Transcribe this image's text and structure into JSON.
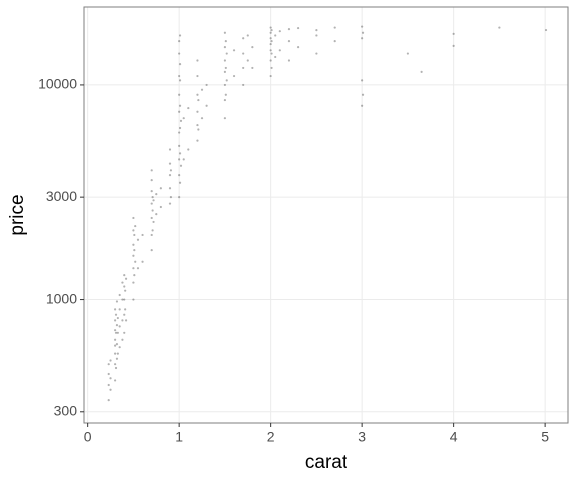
{
  "chart_data": {
    "type": "scatter",
    "x_label": "carat",
    "y_label": "price",
    "color": "#000000",
    "alpha": 0.3,
    "ylog": true,
    "grid": true,
    "xlim": [
      -0.04,
      5.25
    ],
    "ylim": [
      266,
      23070
    ],
    "xticks": [
      0,
      1,
      2,
      3,
      4,
      5
    ],
    "yticks": [
      300,
      1000,
      3000,
      10000
    ],
    "x": [
      0.23,
      0.23,
      0.23,
      0.23,
      0.25,
      0.25,
      0.25,
      0.3,
      0.3,
      0.3,
      0.3,
      0.3,
      0.3,
      0.3,
      0.3,
      0.31,
      0.31,
      0.31,
      0.32,
      0.32,
      0.32,
      0.32,
      0.33,
      0.33,
      0.33,
      0.35,
      0.35,
      0.35,
      0.35,
      0.38,
      0.38,
      0.38,
      0.38,
      0.4,
      0.4,
      0.4,
      0.4,
      0.4,
      0.41,
      0.41,
      0.42,
      0.42,
      0.5,
      0.5,
      0.5,
      0.5,
      0.5,
      0.5,
      0.5,
      0.51,
      0.51,
      0.51,
      0.52,
      0.52,
      0.55,
      0.55,
      0.6,
      0.6,
      0.7,
      0.7,
      0.7,
      0.7,
      0.7,
      0.7,
      0.7,
      0.71,
      0.71,
      0.71,
      0.72,
      0.72,
      0.75,
      0.75,
      0.8,
      0.8,
      0.9,
      0.9,
      0.9,
      0.9,
      0.9,
      0.91,
      0.91,
      1.0,
      1.0,
      1.0,
      1.0,
      1.0,
      1.0,
      1.0,
      1.0,
      1.0,
      1.0,
      1.01,
      1.01,
      1.01,
      1.01,
      1.01,
      1.01,
      1.01,
      1.02,
      1.02,
      1.05,
      1.05,
      1.1,
      1.1,
      1.2,
      1.2,
      1.2,
      1.2,
      1.2,
      1.2,
      1.21,
      1.21,
      1.25,
      1.25,
      1.3,
      1.3,
      1.5,
      1.5,
      1.5,
      1.5,
      1.5,
      1.5,
      1.5,
      1.51,
      1.51,
      1.51,
      1.52,
      1.52,
      1.6,
      1.6,
      1.7,
      1.7,
      1.7,
      1.7,
      1.75,
      1.75,
      1.8,
      1.8,
      2.0,
      2.0,
      2.0,
      2.0,
      2.0,
      2.0,
      2.0,
      2.01,
      2.01,
      2.01,
      2.01,
      2.05,
      2.05,
      2.1,
      2.1,
      2.2,
      2.2,
      2.2,
      2.3,
      2.3,
      2.5,
      2.5,
      2.5,
      2.7,
      2.7,
      3.0,
      3.0,
      3.0,
      3.0,
      3.01,
      3.01,
      3.5,
      3.65,
      4.0,
      4.0,
      4.5,
      5.01
    ],
    "values": [
      340,
      400,
      450,
      500,
      380,
      520,
      430,
      420,
      500,
      560,
      650,
      720,
      800,
      610,
      900,
      480,
      700,
      850,
      530,
      620,
      760,
      980,
      560,
      700,
      820,
      600,
      750,
      900,
      1050,
      650,
      800,
      1000,
      1200,
      700,
      850,
      1000,
      1150,
      1300,
      900,
      1100,
      800,
      1250,
      1000,
      1200,
      1400,
      1600,
      1800,
      2100,
      2400,
      1300,
      1700,
      2000,
      1500,
      2200,
      1400,
      1900,
      1500,
      2000,
      1700,
      2000,
      2400,
      2800,
      3200,
      3600,
      4000,
      2100,
      2600,
      3000,
      2300,
      2900,
      2500,
      3100,
      2700,
      3300,
      2800,
      3300,
      3800,
      4300,
      5000,
      3000,
      4000,
      3000,
      3800,
      4500,
      5200,
      6000,
      7500,
      9000,
      11000,
      14000,
      16000,
      3500,
      4800,
      6300,
      8000,
      10500,
      12500,
      17000,
      4200,
      6800,
      4500,
      7000,
      5000,
      7800,
      5500,
      6500,
      7500,
      9000,
      11000,
      13000,
      6200,
      8500,
      7000,
      9500,
      8000,
      10000,
      7000,
      8500,
      10000,
      11500,
      13000,
      15000,
      17500,
      9000,
      12000,
      16000,
      10500,
      14000,
      11000,
      14500,
      10000,
      12000,
      14000,
      16500,
      13000,
      17000,
      12000,
      15000,
      11000,
      13000,
      14500,
      15500,
      16500,
      17500,
      18500,
      12000,
      14000,
      16000,
      18000,
      13500,
      17000,
      14500,
      17800,
      13000,
      16000,
      18200,
      15000,
      18400,
      14000,
      17000,
      18000,
      16000,
      18500,
      8000,
      10500,
      16500,
      18700,
      9000,
      17500,
      14000,
      11500,
      15200,
      17300,
      18500,
      18018
    ]
  }
}
